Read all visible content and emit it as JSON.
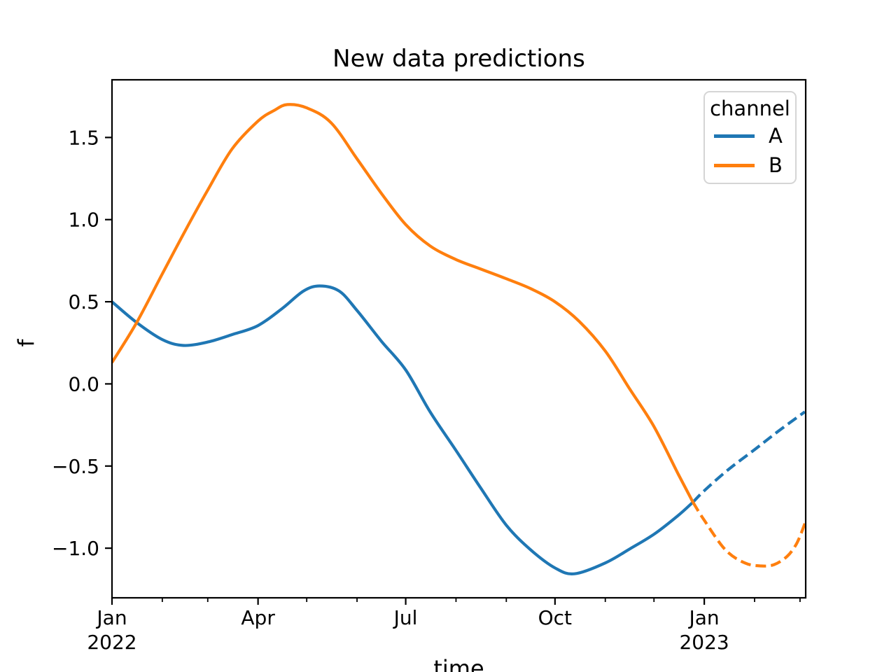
{
  "chart_data": {
    "type": "line",
    "title": "New data predictions",
    "xlabel": "time",
    "ylabel": "f",
    "x_unit": "days since 2022-01-01",
    "xlim_days": [
      0,
      427.5
    ],
    "ylim": [
      -1.302,
      1.851
    ],
    "grid": false,
    "legend_position": "upper right",
    "x_major_ticks": [
      {
        "day": 0,
        "line1": "Jan",
        "line2": "2022"
      },
      {
        "day": 90,
        "line1": "Apr",
        "line2": ""
      },
      {
        "day": 181,
        "line1": "Jul",
        "line2": ""
      },
      {
        "day": 273,
        "line1": "Oct",
        "line2": ""
      },
      {
        "day": 365,
        "line1": "Jan",
        "line2": "2023"
      }
    ],
    "x_minor_tick_days": [
      31,
      59,
      120,
      151,
      212,
      243,
      304,
      334,
      396,
      424
    ],
    "y_ticks": [
      -1.0,
      -0.5,
      0.0,
      0.5,
      1.0,
      1.5
    ],
    "legend": {
      "title": "channel",
      "entries": [
        {
          "label": "A",
          "color": "#1f77b4"
        },
        {
          "label": "B",
          "color": "#ff7f0e"
        }
      ]
    },
    "series": [
      {
        "name": "A observed",
        "channel": "A",
        "color": "#1f77b4",
        "style": "solid",
        "points": [
          [
            0,
            0.5
          ],
          [
            15,
            0.375
          ],
          [
            31,
            0.27
          ],
          [
            44,
            0.234
          ],
          [
            59,
            0.255
          ],
          [
            74,
            0.3
          ],
          [
            90,
            0.355
          ],
          [
            105,
            0.46
          ],
          [
            118,
            0.565
          ],
          [
            128,
            0.596
          ],
          [
            140,
            0.565
          ],
          [
            151,
            0.447
          ],
          [
            166,
            0.26
          ],
          [
            181,
            0.085
          ],
          [
            196,
            -0.17
          ],
          [
            212,
            -0.405
          ],
          [
            227,
            -0.63
          ],
          [
            243,
            -0.86
          ],
          [
            258,
            -1.01
          ],
          [
            273,
            -1.12
          ],
          [
            285,
            -1.156
          ],
          [
            304,
            -1.09
          ],
          [
            319,
            -1.005
          ],
          [
            334,
            -0.915
          ],
          [
            349,
            -0.8
          ],
          [
            358,
            -0.72
          ]
        ]
      },
      {
        "name": "A prediction",
        "channel": "A",
        "color": "#1f77b4",
        "style": "dashed",
        "points": [
          [
            358,
            -0.72
          ],
          [
            365,
            -0.65
          ],
          [
            380,
            -0.52
          ],
          [
            396,
            -0.4
          ],
          [
            411,
            -0.285
          ],
          [
            427,
            -0.17
          ]
        ]
      },
      {
        "name": "B observed",
        "channel": "B",
        "color": "#ff7f0e",
        "style": "solid",
        "points": [
          [
            0,
            0.13
          ],
          [
            15,
            0.37
          ],
          [
            31,
            0.67
          ],
          [
            45,
            0.93
          ],
          [
            59,
            1.18
          ],
          [
            74,
            1.43
          ],
          [
            90,
            1.6
          ],
          [
            100,
            1.665
          ],
          [
            108,
            1.7
          ],
          [
            120,
            1.68
          ],
          [
            135,
            1.59
          ],
          [
            151,
            1.37
          ],
          [
            166,
            1.16
          ],
          [
            181,
            0.97
          ],
          [
            196,
            0.84
          ],
          [
            212,
            0.757
          ],
          [
            227,
            0.7
          ],
          [
            243,
            0.64
          ],
          [
            258,
            0.58
          ],
          [
            273,
            0.5
          ],
          [
            288,
            0.38
          ],
          [
            304,
            0.2
          ],
          [
            319,
            -0.03
          ],
          [
            334,
            -0.26
          ],
          [
            349,
            -0.55
          ],
          [
            358,
            -0.72
          ]
        ]
      },
      {
        "name": "B prediction",
        "channel": "B",
        "color": "#ff7f0e",
        "style": "dashed",
        "points": [
          [
            358,
            -0.72
          ],
          [
            365,
            -0.83
          ],
          [
            378,
            -1.01
          ],
          [
            390,
            -1.09
          ],
          [
            400,
            -1.108
          ],
          [
            408,
            -1.1
          ],
          [
            416,
            -1.05
          ],
          [
            422,
            -0.97
          ],
          [
            427,
            -0.85
          ]
        ]
      }
    ]
  }
}
